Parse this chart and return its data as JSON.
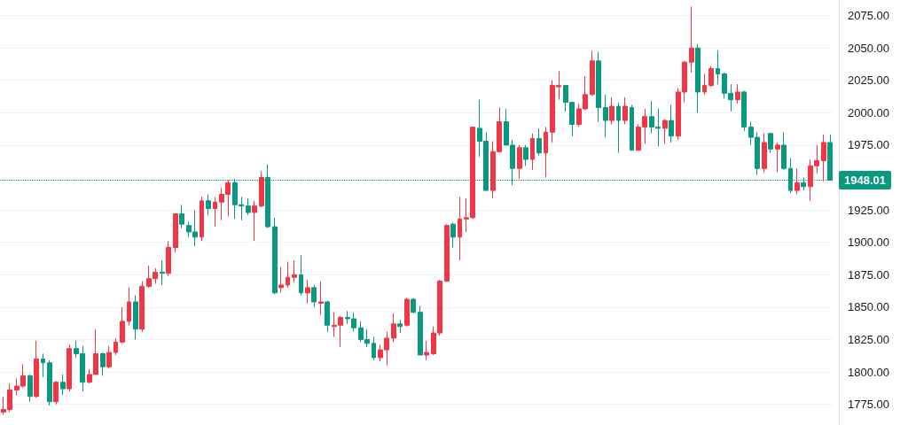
{
  "chart_data": {
    "type": "candlestick",
    "categories": [
      null,
      null,
      null,
      null,
      null,
      null,
      null,
      null,
      null,
      null,
      null,
      null,
      null,
      null,
      null,
      null,
      null,
      null,
      null,
      null,
      null,
      null,
      null,
      null,
      null,
      null,
      null,
      null,
      null,
      null,
      null,
      null,
      null,
      null,
      null,
      null,
      null,
      null,
      null,
      null,
      null,
      null,
      null,
      null,
      null,
      null,
      null,
      null,
      null,
      null,
      null,
      null,
      null,
      null,
      null,
      null,
      null,
      null,
      null,
      null,
      null,
      null,
      null,
      null,
      null,
      null,
      null,
      null,
      null,
      null,
      null,
      null,
      null,
      null,
      null,
      null,
      null,
      null,
      null,
      null,
      null,
      null,
      null,
      null,
      null,
      null,
      null,
      null,
      null,
      null,
      null,
      null,
      null,
      null,
      null,
      null,
      null,
      null,
      null,
      null,
      null,
      null,
      null,
      null,
      null,
      null,
      null,
      null,
      null,
      null,
      null,
      null,
      null,
      null,
      null,
      null,
      null,
      null,
      null,
      null,
      null,
      null,
      null,
      null,
      null,
      null
    ],
    "ohlc": [
      [
        1769,
        1781,
        1767,
        1771
      ],
      [
        1771,
        1791,
        1769,
        1786
      ],
      [
        1786,
        1795,
        1782,
        1789
      ],
      [
        1789,
        1806,
        1788,
        1797
      ],
      [
        1797,
        1798,
        1777,
        1781
      ],
      [
        1781,
        1824,
        1780,
        1810
      ],
      [
        1810,
        1814,
        1796,
        1807
      ],
      [
        1807,
        1809,
        1774,
        1777
      ],
      [
        1777,
        1793,
        1775,
        1792
      ],
      [
        1792,
        1798,
        1782,
        1787
      ],
      [
        1787,
        1821,
        1785,
        1818
      ],
      [
        1818,
        1824,
        1811,
        1814
      ],
      [
        1814,
        1820,
        1785,
        1792
      ],
      [
        1792,
        1802,
        1791,
        1798
      ],
      [
        1798,
        1833,
        1798,
        1814
      ],
      [
        1814,
        1815,
        1797,
        1804
      ],
      [
        1804,
        1820,
        1803,
        1815
      ],
      [
        1815,
        1826,
        1813,
        1823
      ],
      [
        1823,
        1850,
        1822,
        1839
      ],
      [
        1839,
        1865,
        1836,
        1854
      ],
      [
        1854,
        1859,
        1825,
        1833
      ],
      [
        1833,
        1870,
        1831,
        1866
      ],
      [
        1866,
        1882,
        1865,
        1872
      ],
      [
        1872,
        1880,
        1868,
        1877
      ],
      [
        1877,
        1886,
        1867,
        1876
      ],
      [
        1876,
        1901,
        1874,
        1896
      ],
      [
        1896,
        1922,
        1892,
        1922
      ],
      [
        1922,
        1929,
        1911,
        1914
      ],
      [
        1913,
        1916,
        1904,
        1908
      ],
      [
        1908,
        1925,
        1897,
        1904
      ],
      [
        1904,
        1935,
        1901,
        1932
      ],
      [
        1932,
        1937,
        1921,
        1926
      ],
      [
        1926,
        1935,
        1912,
        1931
      ],
      [
        1931,
        1942,
        1917,
        1937
      ],
      [
        1937,
        1948,
        1920,
        1946
      ],
      [
        1946,
        1949,
        1918,
        1929
      ],
      [
        1929,
        1935,
        1917,
        1928
      ],
      [
        1928,
        1934,
        1921,
        1923
      ],
      [
        1923,
        1932,
        1901,
        1928
      ],
      [
        1928,
        1955,
        1927,
        1950
      ],
      [
        1950,
        1960,
        1911,
        1912
      ],
      [
        1912,
        1919,
        1860,
        1861
      ],
      [
        1865,
        1881,
        1861,
        1867
      ],
      [
        1867,
        1885,
        1865,
        1873
      ],
      [
        1873,
        1886,
        1869,
        1875
      ],
      [
        1875,
        1890,
        1859,
        1861
      ],
      [
        1861,
        1871,
        1853,
        1865
      ],
      [
        1865,
        1867,
        1850,
        1854
      ],
      [
        1853,
        1870,
        1844,
        1854
      ],
      [
        1854,
        1855,
        1831,
        1836
      ],
      [
        1835,
        1846,
        1827,
        1836
      ],
      [
        1836,
        1843,
        1819,
        1842
      ],
      [
        1842,
        1847,
        1837,
        1841
      ],
      [
        1841,
        1846,
        1831,
        1834
      ],
      [
        1834,
        1839,
        1823,
        1825
      ],
      [
        1825,
        1833,
        1819,
        1822
      ],
      [
        1822,
        1827,
        1809,
        1811
      ],
      [
        1811,
        1821,
        1808,
        1817
      ],
      [
        1817,
        1831,
        1805,
        1826
      ],
      [
        1826,
        1845,
        1823,
        1837
      ],
      [
        1837,
        1840,
        1830,
        1835
      ],
      [
        1836,
        1857,
        1835,
        1856
      ],
      [
        1856,
        1857,
        1845,
        1846
      ],
      [
        1846,
        1851,
        1813,
        1813
      ],
      [
        1813,
        1824,
        1809,
        1815
      ],
      [
        1814,
        1835,
        1813,
        1830
      ],
      [
        1830,
        1871,
        1828,
        1870
      ],
      [
        1870,
        1914,
        1870,
        1913
      ],
      [
        1914,
        1915,
        1896,
        1904
      ],
      [
        1904,
        1935,
        1886,
        1918
      ],
      [
        1918,
        1934,
        1908,
        1919
      ],
      [
        1919,
        1989,
        1918,
        1989
      ],
      [
        1988,
        2010,
        1966,
        1978
      ],
      [
        1978,
        1985,
        1940,
        1940
      ],
      [
        1940,
        1978,
        1934,
        1970
      ],
      [
        1970,
        2004,
        1969,
        1993
      ],
      [
        1993,
        2003,
        1975,
        1975
      ],
      [
        1975,
        1979,
        1944,
        1957
      ],
      [
        1957,
        1975,
        1949,
        1973
      ],
      [
        1973,
        1975,
        1959,
        1964
      ],
      [
        1964,
        1984,
        1956,
        1980
      ],
      [
        1980,
        1988,
        1967,
        1969
      ],
      [
        1969,
        1989,
        1950,
        1985
      ],
      [
        1985,
        2025,
        1977,
        2021
      ],
      [
        2020,
        2032,
        2010,
        2021
      ],
      [
        2021,
        2021,
        2001,
        2008
      ],
      [
        2008,
        2008,
        1982,
        1991
      ],
      [
        1991,
        2007,
        1989,
        2003
      ],
      [
        2003,
        2028,
        2002,
        2014
      ],
      [
        2014,
        2048,
        2013,
        2040
      ],
      [
        2040,
        2047,
        1993,
        2004
      ],
      [
        2004,
        2014,
        1981,
        1994
      ],
      [
        1994,
        2012,
        1991,
        2005
      ],
      [
        2005,
        2008,
        1969,
        1994
      ],
      [
        1994,
        2012,
        1991,
        2005
      ],
      [
        2004,
        2006,
        1971,
        1971
      ],
      [
        1971,
        1991,
        1971,
        1989
      ],
      [
        1989,
        2003,
        1976,
        1997
      ],
      [
        1997,
        2009,
        1984,
        1989
      ],
      [
        1989,
        2003,
        1974,
        1988
      ],
      [
        1988,
        1995,
        1976,
        1994
      ],
      [
        1994,
        2006,
        1977,
        1982
      ],
      [
        1982,
        2019,
        1979,
        2016
      ],
      [
        2016,
        2040,
        2008,
        2039
      ],
      [
        2039,
        2082,
        2031,
        2050
      ],
      [
        2050,
        2053,
        2000,
        2016
      ],
      [
        2016,
        2030,
        2014,
        2021
      ],
      [
        2021,
        2036,
        2020,
        2034
      ],
      [
        2034,
        2048,
        2022,
        2030
      ],
      [
        2030,
        2031,
        2011,
        2015
      ],
      [
        2015,
        2022,
        2001,
        2010
      ],
      [
        2010,
        2022,
        2007,
        2016
      ],
      [
        2016,
        2017,
        1986,
        1989
      ],
      [
        1989,
        1993,
        1975,
        1981
      ],
      [
        1981,
        1985,
        1952,
        1957
      ],
      [
        1957,
        1984,
        1954,
        1977
      ],
      [
        1984,
        1984,
        1969,
        1972
      ],
      [
        1972,
        1977,
        1954,
        1975
      ],
      [
        1975,
        1985,
        1956,
        1957
      ],
      [
        1957,
        1965,
        1938,
        1940
      ],
      [
        1940,
        1957,
        1937,
        1946
      ],
      [
        1946,
        1950,
        1940,
        1943
      ],
      [
        1943,
        1964,
        1932,
        1959
      ],
      [
        1959,
        1975,
        1953,
        1963
      ],
      [
        1963,
        1983,
        1947,
        1977
      ],
      [
        1977,
        1983,
        1948,
        1948.01
      ]
    ],
    "ylim": [
      1759,
      2087
    ],
    "yticks": [
      {
        "value": 1775,
        "label": "1775.00"
      },
      {
        "value": 1800,
        "label": "1800.00"
      },
      {
        "value": 1825,
        "label": "1825.00"
      },
      {
        "value": 1850,
        "label": "1850.00"
      },
      {
        "value": 1875,
        "label": "1875.00"
      },
      {
        "value": 1900,
        "label": "1900.00"
      },
      {
        "value": 1925,
        "label": "1925.00"
      },
      {
        "value": 1950,
        "label": null
      },
      {
        "value": 1975,
        "label": "1975.00"
      },
      {
        "value": 2000,
        "label": "2000.00"
      },
      {
        "value": 2025,
        "label": "2025.00"
      },
      {
        "value": 2050,
        "label": "2050.00"
      },
      {
        "value": 2075,
        "label": "2075.00"
      }
    ],
    "ref_lines": [
      {
        "axis": "y",
        "value": 1948.01,
        "label": "1948.01",
        "color": "#089981",
        "line_style": "dotted"
      }
    ],
    "grid": "y",
    "tick_labels": "y"
  }
}
